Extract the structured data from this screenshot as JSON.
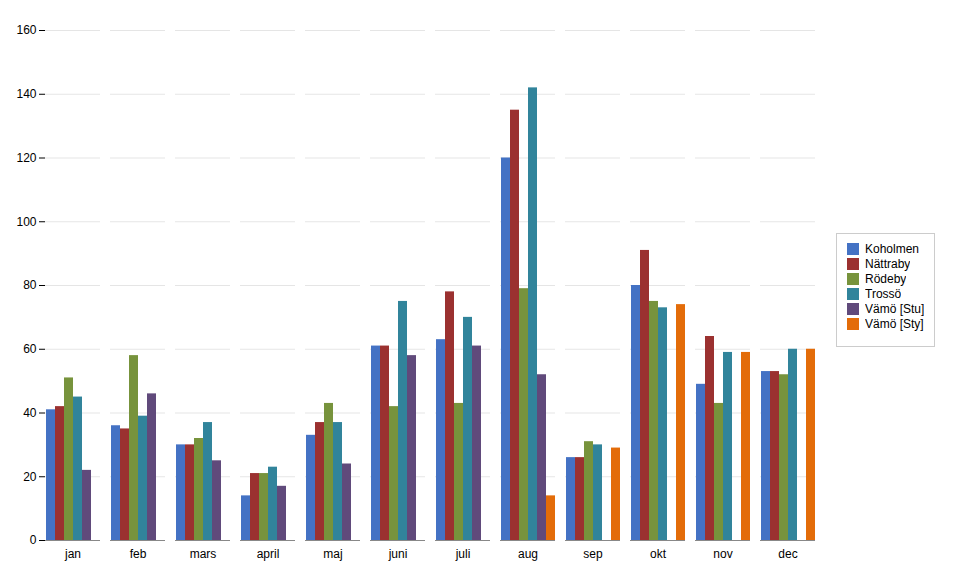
{
  "chart_data": {
    "type": "bar",
    "categories": [
      "jan",
      "feb",
      "mars",
      "april",
      "maj",
      "juni",
      "juli",
      "aug",
      "sep",
      "okt",
      "nov",
      "dec"
    ],
    "series": [
      {
        "name": "Koholmen",
        "color": "#4472C4",
        "values": [
          41,
          36,
          30,
          14,
          33,
          61,
          63,
          120,
          26,
          80,
          49,
          53
        ]
      },
      {
        "name": "Nättraby",
        "color": "#9B3130",
        "values": [
          42,
          35,
          30,
          21,
          37,
          61,
          78,
          135,
          26,
          91,
          64,
          53
        ]
      },
      {
        "name": "Rödeby",
        "color": "#77933C",
        "values": [
          51,
          58,
          32,
          21,
          43,
          42,
          43,
          79,
          31,
          75,
          43,
          52
        ]
      },
      {
        "name": "Trossö",
        "color": "#31849B",
        "values": [
          45,
          39,
          37,
          23,
          37,
          75,
          70,
          142,
          30,
          73,
          59,
          60
        ]
      },
      {
        "name": "Vämö [Stu]",
        "color": "#604A7B",
        "values": [
          22,
          46,
          25,
          17,
          24,
          58,
          61,
          52,
          0,
          0,
          0,
          0
        ]
      },
      {
        "name": "Vämö [Sty]",
        "color": "#E36C09",
        "values": [
          0,
          0,
          0,
          0,
          0,
          0,
          0,
          14,
          29,
          74,
          59,
          60
        ]
      }
    ],
    "ylim": [
      0,
      160
    ],
    "yticks": [
      0,
      20,
      40,
      60,
      80,
      100,
      120,
      140,
      160
    ],
    "grid": true,
    "legend": "right"
  }
}
